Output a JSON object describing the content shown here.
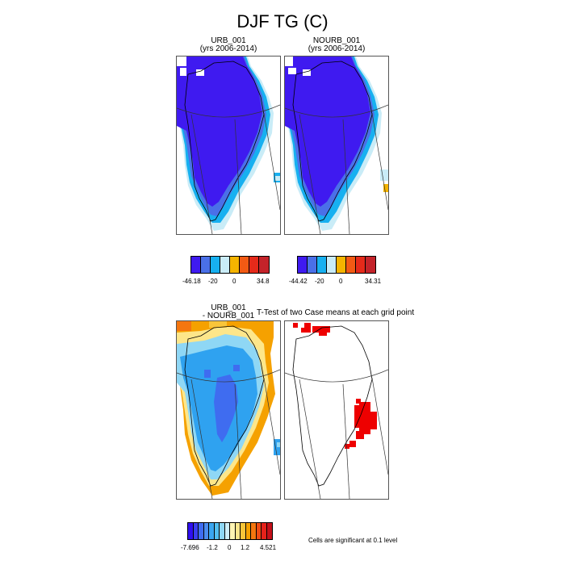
{
  "figure": {
    "title": "DJF TG (C)"
  },
  "panels": [
    {
      "id": "urb",
      "title_line1": "URB_001",
      "title_line2": "(yrs 2006-2014)"
    },
    {
      "id": "nourb",
      "title_line1": "NOURB_001",
      "title_line2": "(yrs 2006-2014)"
    },
    {
      "id": "diff",
      "title_line1": "URB_001",
      "title_line2": "- NOURB_001"
    },
    {
      "id": "ttest",
      "title_line1": "T-Test of two Case means at each grid point",
      "title_line2": ""
    }
  ],
  "colorbars": {
    "urb": {
      "colors": [
        "#3f1af0",
        "#4a70e8",
        "#17b0f0",
        "#c9ecf7",
        "#f5b400",
        "#f25a14",
        "#e52a1a",
        "#c4232a"
      ],
      "labels": [
        "-46.18",
        "-20",
        "0",
        "34.8"
      ]
    },
    "nourb": {
      "colors": [
        "#3f1af0",
        "#4a70e8",
        "#17b0f0",
        "#c9ecf7",
        "#f5b400",
        "#f25a14",
        "#e52a1a",
        "#c4232a"
      ],
      "labels": [
        "-44.42",
        "-20",
        "0",
        "34.31"
      ]
    },
    "diff": {
      "colors": [
        "#2f0ff0",
        "#3a3ff0",
        "#3f6cf0",
        "#4a8cf0",
        "#3aa6f0",
        "#52bff0",
        "#8fd7f5",
        "#cdeef9",
        "#fff4b3",
        "#fde68a",
        "#f8c53a",
        "#f5a100",
        "#f5760f",
        "#f04a14",
        "#e5221a",
        "#c4101a"
      ],
      "labels": [
        "-7.696",
        "-1.2",
        "0",
        "1.2",
        "4.521"
      ]
    }
  },
  "significance_note": "Cells are significant at 0.1 level",
  "palette": {
    "ice_deep": "#3f1af0",
    "ice_mid": "#4a70e8",
    "coast_cyan": "#17b0f0",
    "coast_light": "#c9ecf7",
    "diff_blue_dark": "#3f6cf0",
    "diff_blue": "#2fa2f0",
    "diff_blue_light": "#8fd7f5",
    "diff_warm": "#f5a100",
    "diff_yellow": "#fde68a",
    "significant": "#ee0000"
  }
}
